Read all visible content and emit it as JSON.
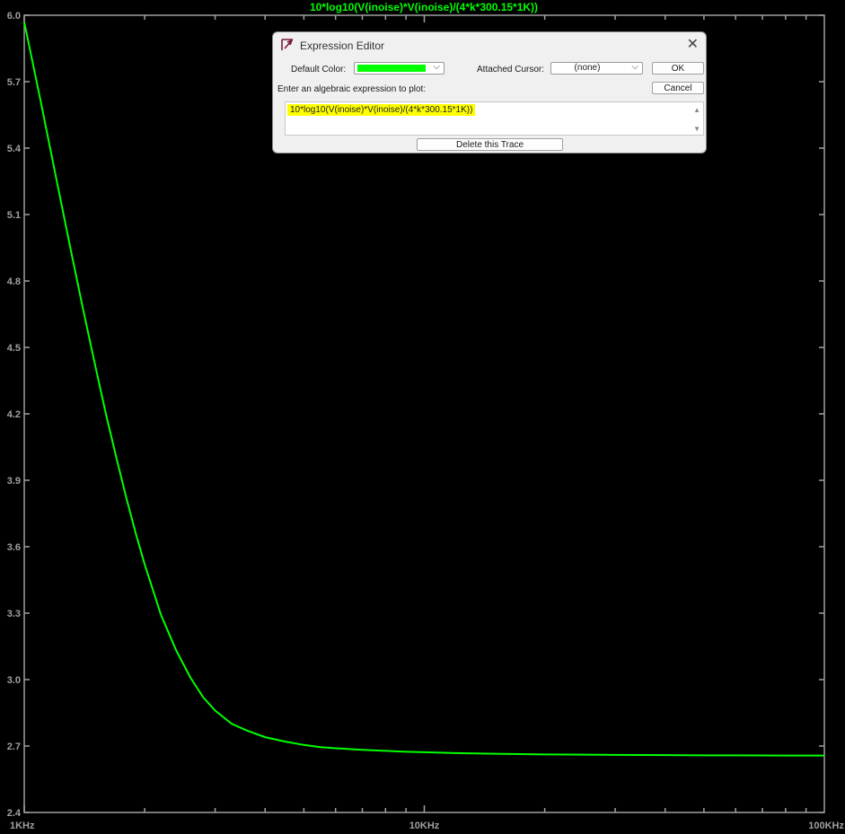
{
  "window": {
    "title": "10*log10(V(inoise)*V(inoise)/(4*k*300.15*1K))"
  },
  "dialog": {
    "title": "Expression Editor",
    "default_color_label": "Default Color:",
    "default_color": "#00ff00",
    "attached_cursor_label": "Attached Cursor:",
    "attached_cursor_value": "(none)",
    "ok_label": "OK",
    "cancel_label": "Cancel",
    "prompt": "Enter an algebraic expression to plot:",
    "expression": "10*log10(V(inoise)*V(inoise)/(4*k*300.15*1K))",
    "delete_label": "Delete this Trace"
  },
  "chart_data": {
    "type": "line",
    "title": "10*log10(V(inoise)*V(inoise)/(4*k*300.15*1K))",
    "xscale": "log",
    "xlim": [
      1000,
      100000
    ],
    "ylim": [
      2.4,
      6.0
    ],
    "x_tick_labels": [
      "1KHz",
      "10KHz",
      "100KHz"
    ],
    "x_tick_values": [
      1000,
      10000,
      100000
    ],
    "y_tick_labels": [
      "6.0",
      "5.7",
      "5.4",
      "5.1",
      "4.8",
      "4.5",
      "4.2",
      "3.9",
      "3.6",
      "3.3",
      "3.0",
      "2.7",
      "2.4"
    ],
    "grid": false,
    "series": [
      {
        "color": "#00ff00",
        "x": [
          1000,
          1100,
          1200,
          1300,
          1400,
          1500,
          1600,
          1700,
          1800,
          1900,
          2000,
          2200,
          2400,
          2600,
          2800,
          3000,
          3300,
          3600,
          4000,
          4500,
          5000,
          5500,
          6000,
          7000,
          8000,
          9000,
          10000,
          12000,
          15000,
          20000,
          25000,
          30000,
          40000,
          50000,
          60000,
          80000,
          100000
        ],
        "y": [
          5.97,
          5.61,
          5.27,
          4.96,
          4.68,
          4.43,
          4.2,
          4.0,
          3.82,
          3.66,
          3.52,
          3.29,
          3.13,
          3.01,
          2.92,
          2.86,
          2.8,
          2.77,
          2.74,
          2.72,
          2.705,
          2.695,
          2.69,
          2.683,
          2.678,
          2.674,
          2.672,
          2.668,
          2.665,
          2.662,
          2.661,
          2.66,
          2.659,
          2.658,
          2.658,
          2.657,
          2.657
        ]
      }
    ]
  }
}
